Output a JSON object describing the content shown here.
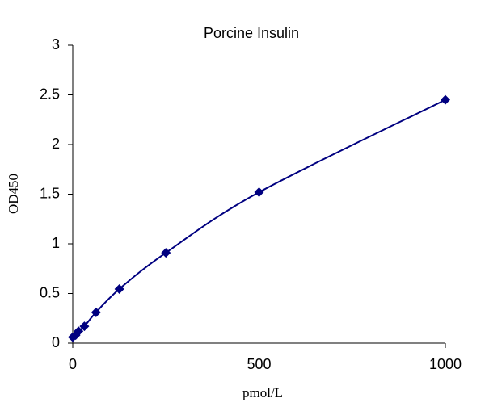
{
  "chart_data": {
    "type": "scatter",
    "title": "Porcine Insulin",
    "x_label": "pmol/L",
    "y_label": "OD450",
    "series": [
      {
        "color": "#000080",
        "x": [
          0,
          7.8,
          15.6,
          31.25,
          62.5,
          125,
          250,
          500,
          1000
        ],
        "values": [
          0.06,
          0.08,
          0.12,
          0.17,
          0.31,
          0.545,
          0.91,
          1.52,
          2.45
        ]
      }
    ],
    "xlim": [
      0,
      1000
    ],
    "xticks": [
      0,
      500,
      1000
    ],
    "ylim": [
      0,
      3
    ],
    "yticks": [
      0,
      0.5,
      1,
      1.5,
      2,
      2.5,
      3
    ],
    "grid": false,
    "smooth_line": true
  }
}
